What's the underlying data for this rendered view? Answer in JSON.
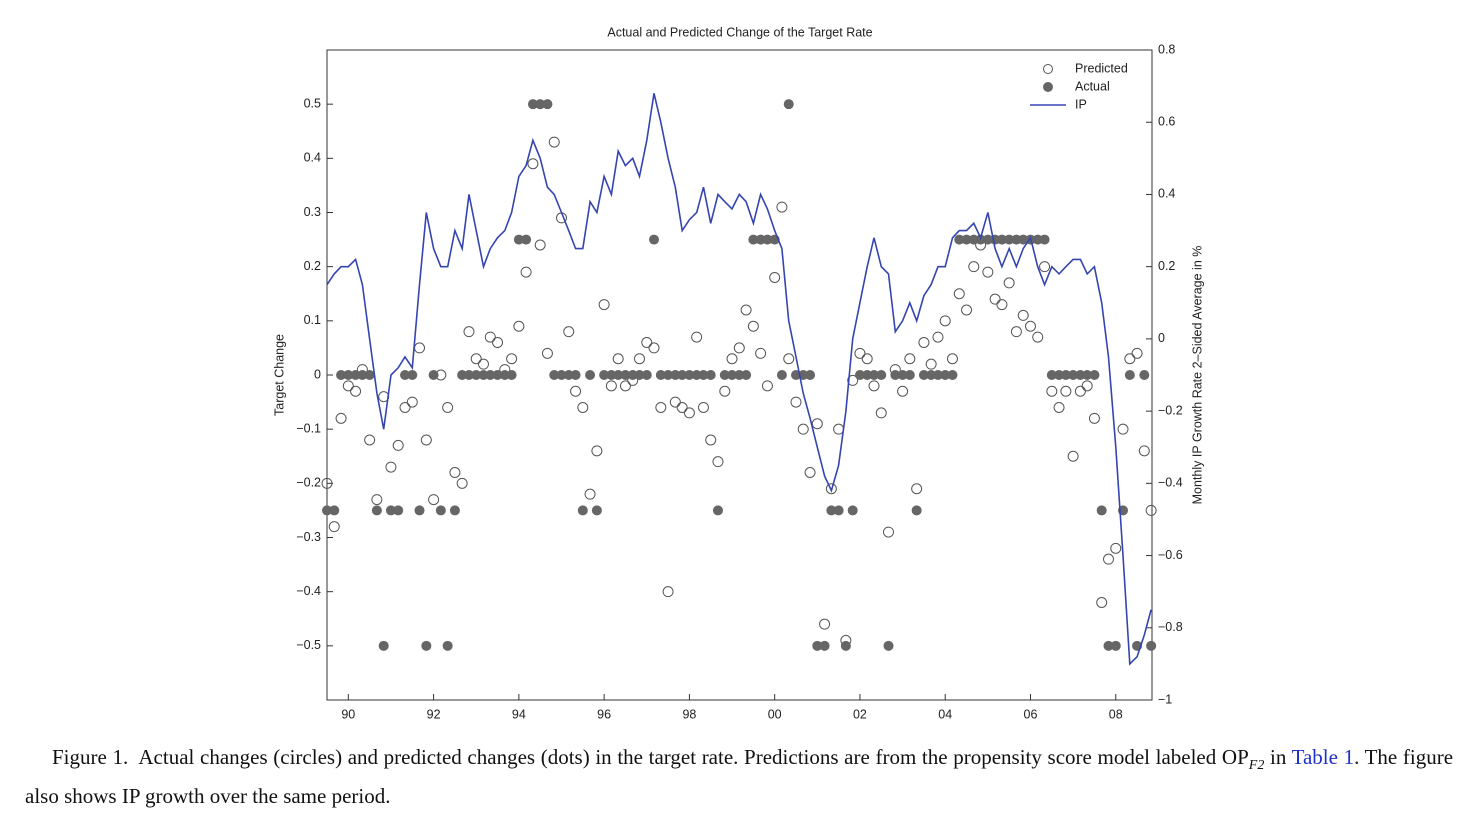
{
  "chart_data": {
    "type": "scatter",
    "title": "Actual and Predicted Change of the Target Rate",
    "ylabel": "Target Change",
    "y2label": "Monthly IP Growth Rate 2–Sided Average in %",
    "xlim": [
      1989.5,
      2008.85
    ],
    "ylim": [
      -0.6,
      0.6
    ],
    "y2lim": [
      -1,
      0.8
    ],
    "xticks": [
      {
        "value": 1990,
        "label": "90"
      },
      {
        "value": 1992,
        "label": "92"
      },
      {
        "value": 1994,
        "label": "94"
      },
      {
        "value": 1996,
        "label": "96"
      },
      {
        "value": 1998,
        "label": "98"
      },
      {
        "value": 2000,
        "label": "00"
      },
      {
        "value": 2002,
        "label": "02"
      },
      {
        "value": 2004,
        "label": "04"
      },
      {
        "value": 2006,
        "label": "06"
      },
      {
        "value": 2008,
        "label": "08"
      }
    ],
    "yticks": [
      {
        "value": -0.5,
        "label": "−0.5"
      },
      {
        "value": -0.4,
        "label": "−0.4"
      },
      {
        "value": -0.3,
        "label": "−0.3"
      },
      {
        "value": -0.2,
        "label": "−0.2"
      },
      {
        "value": -0.1,
        "label": "−0.1"
      },
      0,
      0.1,
      0.2,
      0.3,
      0.4,
      0.5
    ],
    "y2ticks": [
      {
        "value": -1,
        "label": "−1"
      },
      {
        "value": -0.8,
        "label": "−0.8"
      },
      {
        "value": -0.6,
        "label": "−0.6"
      },
      {
        "value": -0.4,
        "label": "−0.4"
      },
      {
        "value": -0.2,
        "label": "−0.2"
      },
      0,
      0.2,
      0.4,
      0.6,
      0.8
    ],
    "legend": "upper right",
    "x": [
      1989.5,
      1989.67,
      1989.83,
      1990,
      1990.17,
      1990.33,
      1990.5,
      1990.67,
      1990.83,
      1991,
      1991.17,
      1991.33,
      1991.5,
      1991.67,
      1991.83,
      1992,
      1992.17,
      1992.33,
      1992.5,
      1992.67,
      1992.83,
      1993,
      1993.17,
      1993.33,
      1993.5,
      1993.67,
      1993.83,
      1994,
      1994.17,
      1994.33,
      1994.5,
      1994.67,
      1994.83,
      1995,
      1995.17,
      1995.33,
      1995.5,
      1995.67,
      1995.83,
      1996,
      1996.17,
      1996.33,
      1996.5,
      1996.67,
      1996.83,
      1997,
      1997.17,
      1997.33,
      1997.5,
      1997.67,
      1997.83,
      1998,
      1998.17,
      1998.33,
      1998.5,
      1998.67,
      1998.83,
      1999,
      1999.17,
      1999.33,
      1999.5,
      1999.67,
      1999.83,
      2000,
      2000.17,
      2000.33,
      2000.5,
      2000.67,
      2000.83,
      2001,
      2001.17,
      2001.33,
      2001.5,
      2001.67,
      2001.83,
      2002,
      2002.17,
      2002.33,
      2002.5,
      2002.67,
      2002.83,
      2003,
      2003.17,
      2003.33,
      2003.5,
      2003.67,
      2003.83,
      2004,
      2004.17,
      2004.33,
      2004.5,
      2004.67,
      2004.83,
      2005,
      2005.17,
      2005.33,
      2005.5,
      2005.67,
      2005.83,
      2006,
      2006.17,
      2006.33,
      2006.5,
      2006.67,
      2006.83,
      2007,
      2007.17,
      2007.33,
      2007.5,
      2007.67,
      2007.83,
      2008,
      2008.17,
      2008.33,
      2008.5,
      2008.67,
      2008.83
    ],
    "series": [
      {
        "name": "Predicted",
        "type": "open-circle",
        "color": "#555555",
        "values": [
          -0.2,
          -0.28,
          -0.08,
          -0.02,
          -0.03,
          0.01,
          -0.12,
          -0.23,
          -0.04,
          -0.17,
          -0.13,
          -0.06,
          -0.05,
          0.05,
          -0.12,
          -0.23,
          0,
          -0.06,
          -0.18,
          -0.2,
          0.08,
          0.03,
          0.02,
          0.07,
          0.06,
          0.01,
          0.03,
          0.09,
          0.19,
          0.39,
          0.24,
          0.04,
          0.43,
          0.29,
          0.08,
          -0.03,
          -0.06,
          -0.22,
          -0.14,
          0.13,
          -0.02,
          0.03,
          -0.02,
          -0.01,
          0.03,
          0.06,
          0.05,
          -0.06,
          -0.4,
          -0.05,
          -0.06,
          -0.07,
          0.07,
          -0.06,
          -0.12,
          -0.16,
          -0.03,
          0.03,
          0.05,
          0.12,
          0.09,
          0.04,
          -0.02,
          0.18,
          0.31,
          0.03,
          -0.05,
          -0.1,
          -0.18,
          -0.09,
          -0.46,
          -0.21,
          -0.1,
          -0.49,
          -0.01,
          0.04,
          0.03,
          -0.02,
          -0.07,
          -0.29,
          0.01,
          -0.03,
          0.03,
          -0.21,
          0.06,
          0.02,
          0.07,
          0.1,
          0.03,
          0.15,
          0.12,
          0.2,
          0.24,
          0.19,
          0.14,
          0.13,
          0.17,
          0.08,
          0.11,
          0.09,
          0.07,
          0.2,
          -0.03,
          -0.06,
          -0.03,
          -0.15,
          -0.03,
          -0.02,
          -0.08,
          -0.42,
          -0.34,
          -0.32,
          -0.1,
          0.03,
          0.04,
          -0.14,
          -0.25
        ]
      },
      {
        "name": "Actual",
        "type": "filled-circle",
        "color": "#666666",
        "values": [
          -0.25,
          -0.25,
          0,
          0,
          0,
          0,
          0,
          -0.25,
          -0.5,
          -0.25,
          -0.25,
          0,
          0,
          -0.25,
          -0.5,
          0,
          -0.25,
          -0.5,
          -0.25,
          0,
          0,
          0,
          0,
          0,
          0,
          0,
          0,
          0.25,
          0.25,
          0.5,
          0.5,
          0.5,
          0,
          0,
          0,
          0,
          -0.25,
          0,
          -0.25,
          0,
          0,
          0,
          0,
          0,
          0,
          0,
          0.25,
          0,
          0,
          0,
          0,
          0,
          0,
          0,
          0,
          -0.25,
          0,
          0,
          0,
          0,
          0.25,
          0.25,
          0.25,
          0.25,
          0,
          0.5,
          0,
          0,
          0,
          -0.5,
          -0.5,
          -0.25,
          -0.25,
          -0.5,
          -0.25,
          0,
          0,
          0,
          0,
          -0.5,
          0,
          0,
          0,
          -0.25,
          0,
          0,
          0,
          0,
          0,
          0.25,
          0.25,
          0.25,
          0.25,
          0.25,
          0.25,
          0.25,
          0.25,
          0.25,
          0.25,
          0.25,
          0.25,
          0.25,
          0,
          0,
          0,
          0,
          0,
          0,
          0,
          -0.25,
          -0.5,
          -0.5,
          -0.25,
          0,
          -0.5,
          0,
          -0.5
        ]
      },
      {
        "name": "IP",
        "type": "line",
        "axis": "y2",
        "color": "#3545b0",
        "values": [
          0.15,
          0.18,
          0.2,
          0.2,
          0.22,
          0.15,
          0,
          -0.15,
          -0.25,
          -0.1,
          -0.08,
          -0.05,
          -0.08,
          0.15,
          0.35,
          0.25,
          0.2,
          0.2,
          0.3,
          0.25,
          0.4,
          0.3,
          0.2,
          0.25,
          0.28,
          0.3,
          0.35,
          0.45,
          0.48,
          0.55,
          0.5,
          0.42,
          0.4,
          0.35,
          0.3,
          0.25,
          0.25,
          0.38,
          0.35,
          0.45,
          0.4,
          0.52,
          0.48,
          0.5,
          0.45,
          0.55,
          0.68,
          0.6,
          0.5,
          0.42,
          0.3,
          0.33,
          0.35,
          0.42,
          0.32,
          0.4,
          0.38,
          0.36,
          0.4,
          0.38,
          0.32,
          0.4,
          0.36,
          0.3,
          0.25,
          0.05,
          -0.05,
          -0.15,
          -0.22,
          -0.3,
          -0.38,
          -0.42,
          -0.35,
          -0.2,
          0,
          0.1,
          0.2,
          0.28,
          0.2,
          0.18,
          0.02,
          0.05,
          0.1,
          0.05,
          0.12,
          0.15,
          0.2,
          0.2,
          0.28,
          0.3,
          0.3,
          0.32,
          0.28,
          0.35,
          0.25,
          0.2,
          0.25,
          0.2,
          0.25,
          0.28,
          0.2,
          0.15,
          0.2,
          0.18,
          0.2,
          0.22,
          0.22,
          0.18,
          0.2,
          0.1,
          -0.05,
          -0.3,
          -0.6,
          -0.9,
          -0.88,
          -0.82,
          -0.75
        ]
      }
    ]
  },
  "caption": {
    "label": "Figure 1.",
    "text": "Actual changes (circles) and predicted changes (dots) in the target rate. Predictions are from the propensity score model labeled",
    "model": "OP",
    "model_sub": "F2",
    "in": "in",
    "link": "Table 1",
    "end": ". The figure also shows IP growth over the same period."
  }
}
